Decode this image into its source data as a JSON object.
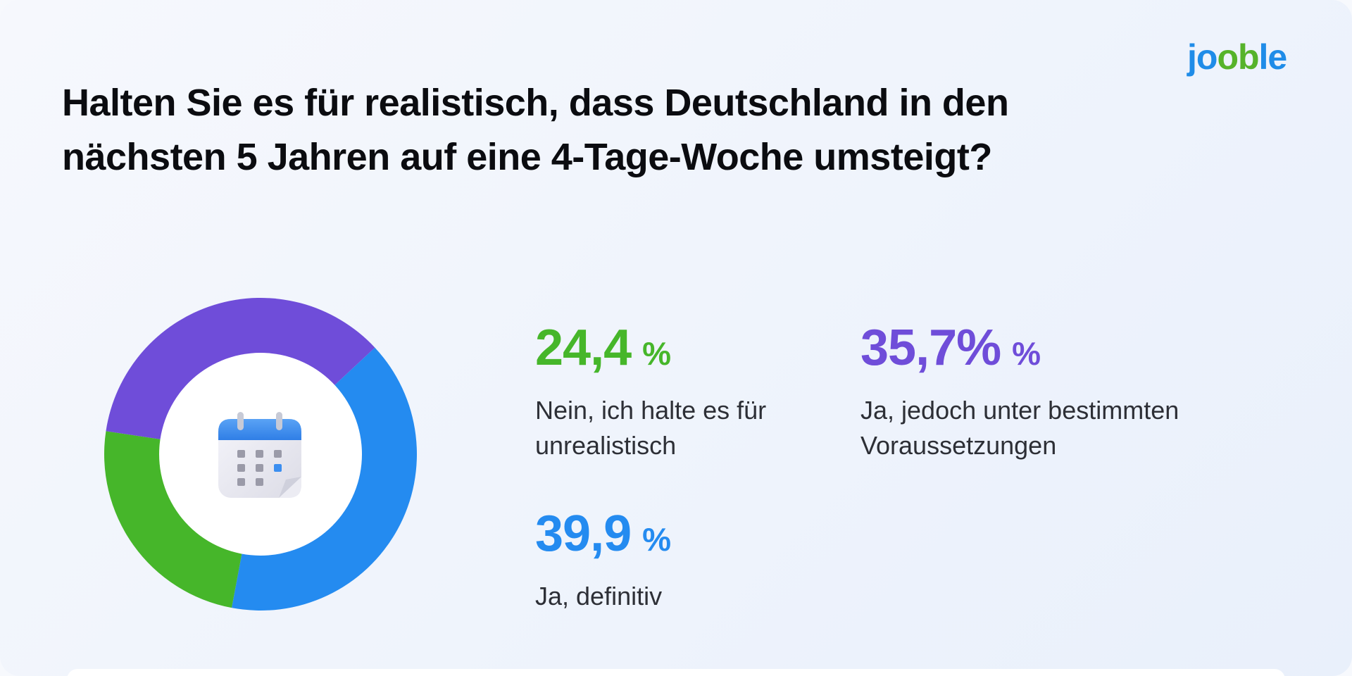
{
  "logo": {
    "part1": "jo",
    "part2": "ob",
    "part3": "le"
  },
  "title": "Halten Sie es für realistisch, dass Deutschland in den nächsten 5 Jahren auf eine 4-Tage-Woche umsteigt?",
  "center_icon": "calendar-icon",
  "stats": {
    "nein": {
      "value": "24,4",
      "pct": "%",
      "label": "Nein, ich halte es für unrealistisch",
      "color": "#46b62a"
    },
    "voraussetzungen": {
      "value": "35,7%",
      "pct": "%",
      "label": "Ja, jedoch unter bestimmten Voraussetzungen",
      "color": "#6f4dd9"
    },
    "definitiv": {
      "value": "39,9",
      "pct": "%",
      "label": "Ja, definitiv",
      "color": "#248bf0"
    }
  },
  "chart_data": {
    "type": "pie",
    "donut": true,
    "categories": [
      "Ja, definitiv",
      "Nein, ich halte es für unrealistisch",
      "Ja, jedoch unter bestimmten Voraussetzungen"
    ],
    "values": [
      39.9,
      24.4,
      35.7
    ],
    "colors": [
      "#248bf0",
      "#46b62a",
      "#6f4dd9"
    ],
    "start_angle_deg": 47
  }
}
